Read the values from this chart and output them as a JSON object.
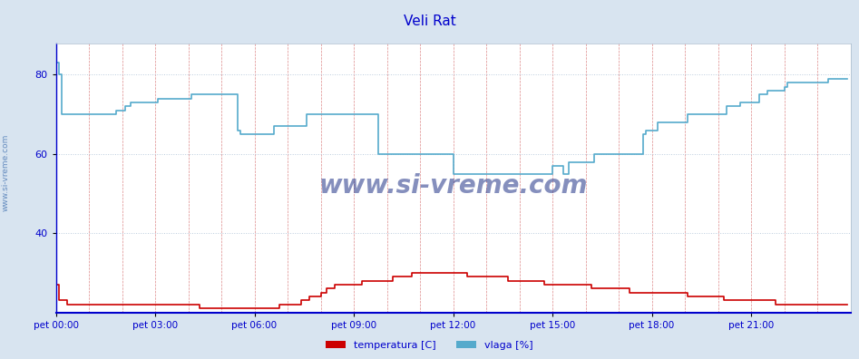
{
  "title": "Veli Rat",
  "title_color": "#0000cc",
  "bg_color": "#d8e4f0",
  "plot_bg_color": "#ffffff",
  "grid_color_v": "#dd8888",
  "grid_color_h": "#bbccdd",
  "xlabel_color": "#0000cc",
  "ylabel_color": "#0000cc",
  "watermark": "www.si-vreme.com",
  "watermark_color": "#223388",
  "ylim": [
    20,
    88
  ],
  "yticks": [
    40,
    60,
    80
  ],
  "n_points": 288,
  "x_tick_positions_frac": [
    0.0,
    0.125,
    0.25,
    0.375,
    0.5,
    0.625,
    0.75,
    0.875
  ],
  "x_tick_labels": [
    "pet 00:00",
    "pet 03:00",
    "pet 06:00",
    "pet 09:00",
    "pet 12:00",
    "pet 15:00",
    "pet 18:00",
    "pet 21:00"
  ],
  "legend_labels": [
    "temperatura [C]",
    "vlaga [%]"
  ],
  "legend_colors": [
    "#cc0000",
    "#55aacc"
  ],
  "line_color_temp": "#cc0000",
  "line_color_vlaga": "#55aacc",
  "temp_data": [
    27,
    23,
    23,
    23,
    22,
    22,
    22,
    22,
    22,
    22,
    22,
    22,
    22,
    22,
    22,
    22,
    22,
    22,
    22,
    22,
    22,
    22,
    22,
    22,
    22,
    22,
    22,
    22,
    22,
    22,
    22,
    22,
    22,
    22,
    22,
    22,
    22,
    22,
    22,
    22,
    22,
    22,
    22,
    22,
    22,
    22,
    22,
    22,
    22,
    22,
    22,
    22,
    21,
    21,
    21,
    21,
    21,
    21,
    21,
    21,
    21,
    21,
    21,
    21,
    21,
    21,
    21,
    21,
    21,
    21,
    21,
    21,
    21,
    21,
    21,
    21,
    21,
    21,
    21,
    21,
    21,
    22,
    22,
    22,
    22,
    22,
    22,
    22,
    22,
    23,
    23,
    23,
    24,
    24,
    24,
    24,
    25,
    25,
    26,
    26,
    26,
    27,
    27,
    27,
    27,
    27,
    27,
    27,
    27,
    27,
    27,
    28,
    28,
    28,
    28,
    28,
    28,
    28,
    28,
    28,
    28,
    28,
    29,
    29,
    29,
    29,
    29,
    29,
    29,
    30,
    30,
    30,
    30,
    30,
    30,
    30,
    30,
    30,
    30,
    30,
    30,
    30,
    30,
    30,
    30,
    30,
    30,
    30,
    30,
    29,
    29,
    29,
    29,
    29,
    29,
    29,
    29,
    29,
    29,
    29,
    29,
    29,
    29,
    29,
    28,
    28,
    28,
    28,
    28,
    28,
    28,
    28,
    28,
    28,
    28,
    28,
    28,
    27,
    27,
    27,
    27,
    27,
    27,
    27,
    27,
    27,
    27,
    27,
    27,
    27,
    27,
    27,
    27,
    27,
    26,
    26,
    26,
    26,
    26,
    26,
    26,
    26,
    26,
    26,
    26,
    26,
    26,
    26,
    25,
    25,
    25,
    25,
    25,
    25,
    25,
    25,
    25,
    25,
    25,
    25,
    25,
    25,
    25,
    25,
    25,
    25,
    25,
    25,
    25,
    24,
    24,
    24,
    24,
    24,
    24,
    24,
    24,
    24,
    24,
    24,
    24,
    24,
    23,
    23,
    23,
    23,
    23,
    23,
    23,
    23,
    23,
    23,
    23,
    23,
    23,
    23,
    23,
    23,
    23,
    23,
    23,
    22,
    22,
    22,
    22,
    22,
    22,
    22,
    22,
    22,
    22,
    22,
    22,
    22,
    22,
    22,
    22,
    22,
    22,
    22,
    22,
    22,
    22,
    22,
    22,
    22,
    22,
    22
  ],
  "vlaga_data": [
    83,
    80,
    70,
    70,
    70,
    70,
    70,
    70,
    70,
    70,
    70,
    70,
    70,
    70,
    70,
    70,
    70,
    70,
    70,
    70,
    70,
    70,
    71,
    71,
    71,
    72,
    72,
    73,
    73,
    73,
    73,
    73,
    73,
    73,
    73,
    73,
    73,
    74,
    74,
    74,
    74,
    74,
    74,
    74,
    74,
    74,
    74,
    74,
    74,
    75,
    75,
    75,
    75,
    75,
    75,
    75,
    75,
    75,
    75,
    75,
    75,
    75,
    75,
    75,
    75,
    75,
    66,
    65,
    65,
    65,
    65,
    65,
    65,
    65,
    65,
    65,
    65,
    65,
    65,
    67,
    67,
    67,
    67,
    67,
    67,
    67,
    67,
    67,
    67,
    67,
    67,
    70,
    70,
    70,
    70,
    70,
    70,
    70,
    70,
    70,
    70,
    70,
    70,
    70,
    70,
    70,
    70,
    70,
    70,
    70,
    70,
    70,
    70,
    70,
    70,
    70,
    70,
    60,
    60,
    60,
    60,
    60,
    60,
    60,
    60,
    60,
    60,
    60,
    60,
    60,
    60,
    60,
    60,
    60,
    60,
    60,
    60,
    60,
    60,
    60,
    60,
    60,
    60,
    60,
    55,
    55,
    55,
    55,
    55,
    55,
    55,
    55,
    55,
    55,
    55,
    55,
    55,
    55,
    55,
    55,
    55,
    55,
    55,
    55,
    55,
    55,
    55,
    55,
    55,
    55,
    55,
    55,
    55,
    55,
    55,
    55,
    55,
    55,
    55,
    55,
    57,
    57,
    57,
    57,
    55,
    55,
    58,
    58,
    58,
    58,
    58,
    58,
    58,
    58,
    58,
    60,
    60,
    60,
    60,
    60,
    60,
    60,
    60,
    60,
    60,
    60,
    60,
    60,
    60,
    60,
    60,
    60,
    60,
    65,
    66,
    66,
    66,
    66,
    68,
    68,
    68,
    68,
    68,
    68,
    68,
    68,
    68,
    68,
    68,
    70,
    70,
    70,
    70,
    70,
    70,
    70,
    70,
    70,
    70,
    70,
    70,
    70,
    70,
    72,
    72,
    72,
    72,
    72,
    73,
    73,
    73,
    73,
    73,
    73,
    73,
    75,
    75,
    75,
    76,
    76,
    76,
    76,
    76,
    76,
    77,
    78,
    78,
    78,
    78,
    78,
    78,
    78,
    78,
    78,
    78,
    78,
    78,
    78,
    78,
    78,
    79,
    79,
    79,
    79,
    79,
    79,
    79,
    79
  ]
}
